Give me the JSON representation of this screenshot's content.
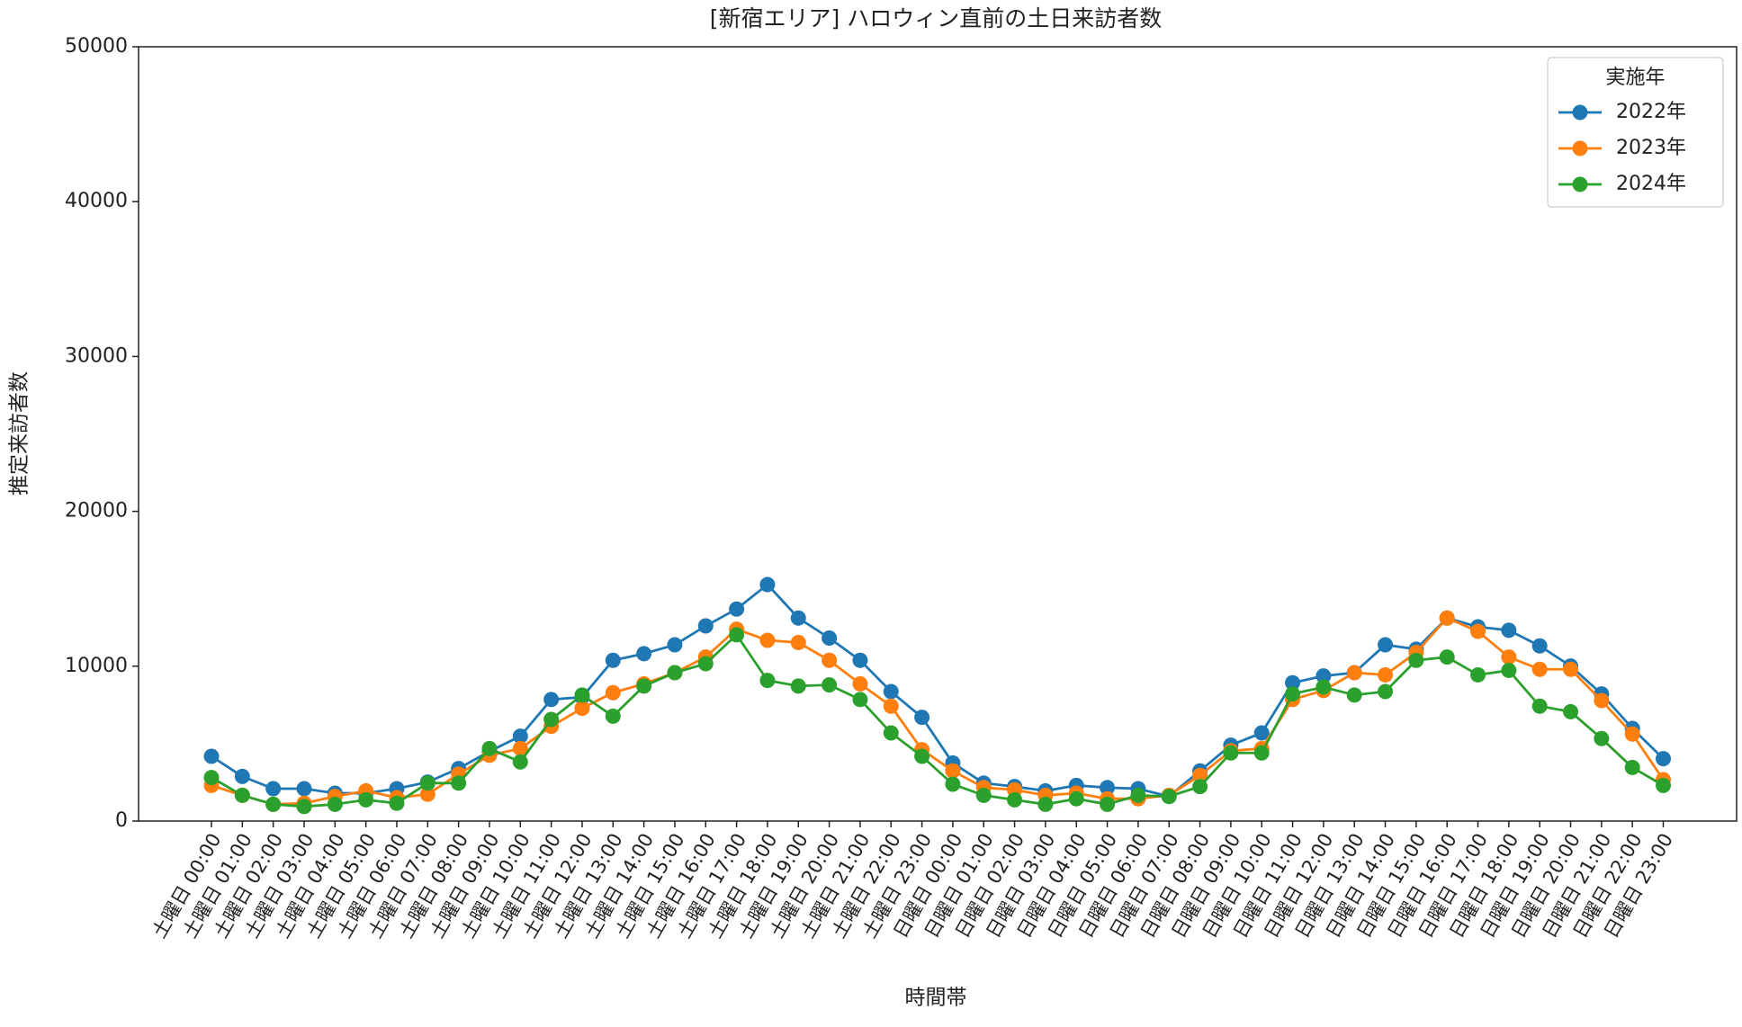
{
  "chart_data": {
    "type": "line",
    "title": "[新宿エリア] ハロウィン直前の土日来訪者数",
    "x_label": "時間帯",
    "y_label": "推定来訪者数",
    "legend_title": "実施年",
    "legend_position": "upper right",
    "categories": [
      "土曜日 00:00",
      "土曜日 01:00",
      "土曜日 02:00",
      "土曜日 03:00",
      "土曜日 04:00",
      "土曜日 05:00",
      "土曜日 06:00",
      "土曜日 07:00",
      "土曜日 08:00",
      "土曜日 09:00",
      "土曜日 10:00",
      "土曜日 11:00",
      "土曜日 12:00",
      "土曜日 13:00",
      "土曜日 14:00",
      "土曜日 15:00",
      "土曜日 16:00",
      "土曜日 17:00",
      "土曜日 18:00",
      "土曜日 19:00",
      "土曜日 20:00",
      "土曜日 21:00",
      "土曜日 22:00",
      "土曜日 23:00",
      "日曜日 00:00",
      "日曜日 01:00",
      "日曜日 02:00",
      "日曜日 03:00",
      "日曜日 04:00",
      "日曜日 05:00",
      "日曜日 06:00",
      "日曜日 07:00",
      "日曜日 08:00",
      "日曜日 09:00",
      "日曜日 10:00",
      "日曜日 11:00",
      "日曜日 12:00",
      "日曜日 13:00",
      "日曜日 14:00",
      "日曜日 15:00",
      "日曜日 16:00",
      "日曜日 17:00",
      "日曜日 18:00",
      "日曜日 19:00",
      "日曜日 20:00",
      "日曜日 21:00",
      "日曜日 22:00",
      "日曜日 23:00"
    ],
    "series": [
      {
        "name": "2022年",
        "color": "#1f77b4",
        "values": [
          4180,
          2880,
          2090,
          2090,
          1800,
          1800,
          2090,
          2520,
          3390,
          4500,
          5480,
          7850,
          8000,
          10380,
          10810,
          11380,
          12600,
          13690,
          15270,
          13110,
          11820,
          10380,
          8360,
          6700,
          3750,
          2450,
          2230,
          1950,
          2300,
          2160,
          2090,
          1590,
          3240,
          4900,
          5690,
          8930,
          9370,
          9580,
          11380,
          11100,
          13110,
          12540,
          12320,
          11310,
          10010,
          8210,
          5980,
          4030
        ]
      },
      {
        "name": "2023年",
        "color": "#ff7f0e",
        "values": [
          2300,
          1660,
          1080,
          1150,
          1590,
          1950,
          1510,
          1730,
          3030,
          4250,
          4680,
          6120,
          7280,
          8290,
          8860,
          9580,
          10590,
          12390,
          11670,
          11530,
          10380,
          8860,
          7420,
          4610,
          3240,
          2160,
          2020,
          1660,
          1800,
          1440,
          1440,
          1660,
          2950,
          4540,
          4680,
          7850,
          8430,
          9580,
          9440,
          10880,
          13110,
          12250,
          10590,
          9800,
          9800,
          7780,
          5620,
          2670
        ]
      },
      {
        "name": "2024年",
        "color": "#2ca02c",
        "values": [
          2810,
          1660,
          1080,
          940,
          1080,
          1370,
          1150,
          2450,
          2450,
          4680,
          3820,
          6560,
          8140,
          6770,
          8720,
          9580,
          10160,
          12030,
          9080,
          8720,
          8790,
          7850,
          5690,
          4180,
          2380,
          1660,
          1370,
          1080,
          1440,
          1080,
          1660,
          1590,
          2230,
          4400,
          4400,
          8210,
          8650,
          8140,
          8360,
          10380,
          10590,
          9440,
          9730,
          7420,
          7060,
          5330,
          3460,
          2300
        ]
      }
    ],
    "ylim": [
      0,
      50000
    ],
    "yticks": [
      0,
      10000,
      20000,
      30000,
      40000,
      50000
    ],
    "grid": false
  }
}
